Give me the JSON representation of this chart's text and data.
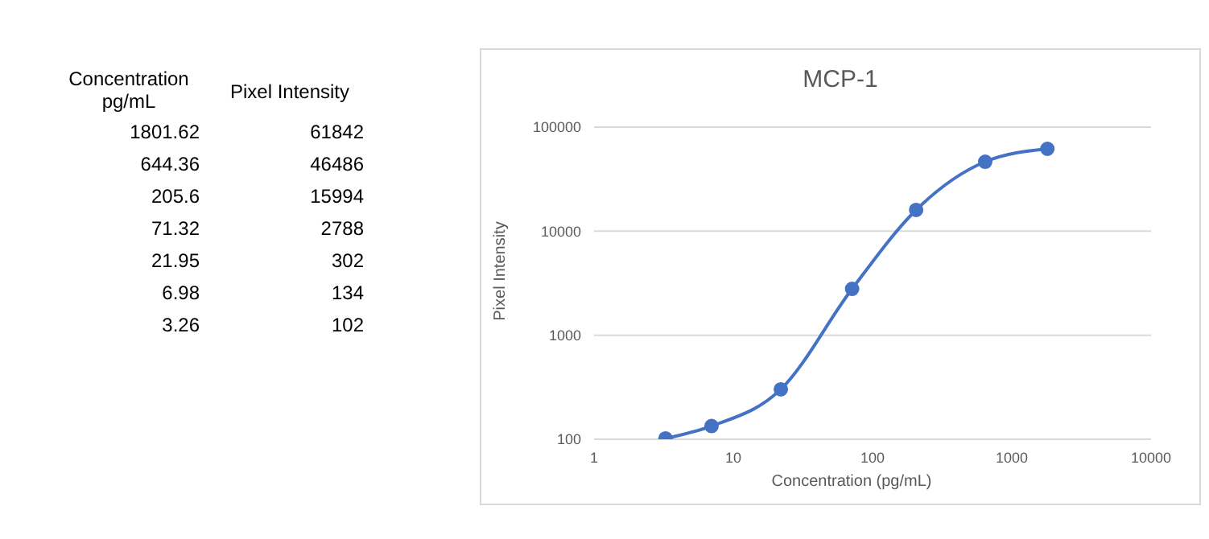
{
  "chart_data": [
    {
      "type": "other",
      "xlabel": "Concentration pg/mL",
      "ylabel": "Pixel Intensity",
      "categories": [
        "1801.62",
        "644.36",
        "205.6",
        "71.32",
        "21.95",
        "6.98",
        "3.26"
      ],
      "values": [
        61842,
        46486,
        15994,
        2788,
        302,
        134,
        102
      ],
      "data_labels": true
    },
    {
      "type": "line",
      "title": "MCP-1",
      "xlabel": "Concentration (pg/mL)",
      "ylabel": "Pixel Intensity",
      "x": [
        1801.62,
        644.36,
        205.6,
        71.32,
        21.95,
        6.98,
        3.26
      ],
      "series": [
        {
          "color": "#4472c4",
          "values": [
            61842,
            46486,
            15994,
            2788,
            302,
            134,
            102
          ]
        }
      ],
      "log": "xy",
      "xlim": [
        1,
        10000
      ],
      "xticks": [
        1,
        10,
        100,
        1000,
        10000
      ],
      "ylim": [
        100,
        100000
      ],
      "yticks": [
        100,
        1000,
        10000,
        100000
      ],
      "grid": "y",
      "marker": "circle",
      "line_style": "solid"
    }
  ]
}
